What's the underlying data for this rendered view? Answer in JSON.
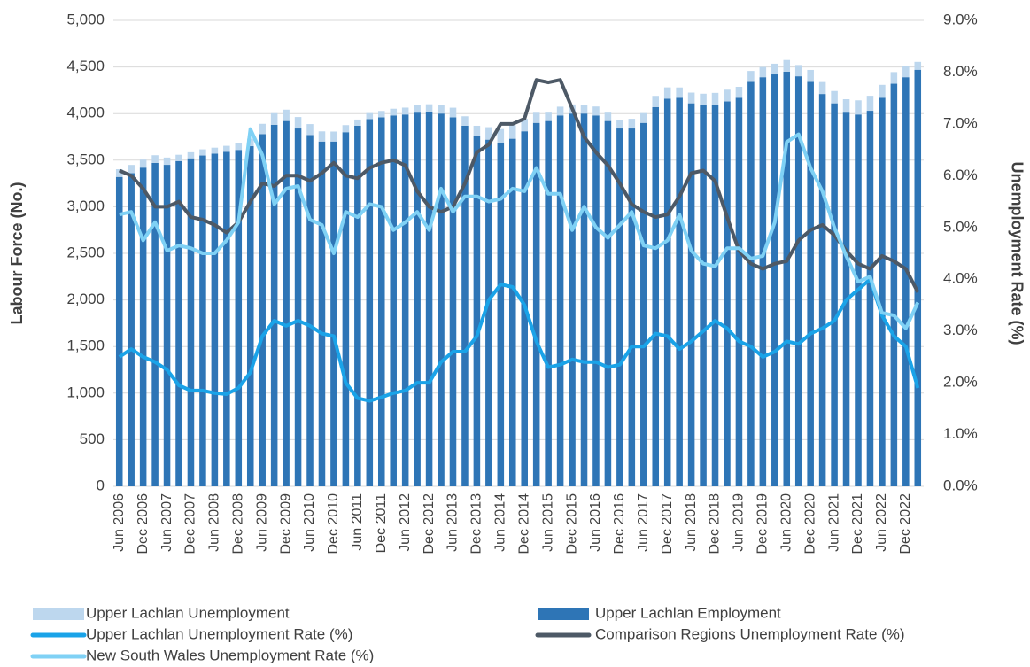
{
  "chart_data": {
    "type": "bar",
    "stacked": true,
    "y_label": "Labour Force (No.)",
    "y2_label": "Unemployment Rate (%)",
    "categories": [
      "Jun 2006",
      null,
      "Dec 2006",
      null,
      "Jun 2007",
      null,
      "Dec 2007",
      null,
      "Jun 2008",
      null,
      "Dec 2008",
      null,
      "Jun 2009",
      null,
      "Dec 2009",
      null,
      "Jun 2010",
      null,
      "Dec 2010",
      null,
      "Jun 2011",
      null,
      "Dec 2011",
      null,
      "Jun 2012",
      null,
      "Dec 2012",
      null,
      "Jun 2013",
      null,
      "Dec 2013",
      null,
      "Jun 2014",
      null,
      "Dec 2014",
      null,
      "Jun 2015",
      null,
      "Dec 2015",
      null,
      "Jun 2016",
      null,
      "Dec 2016",
      null,
      "Jun 2017",
      null,
      "Dec 2017",
      null,
      "Jun 2018",
      null,
      "Dec 2018",
      null,
      "Jun 2019",
      null,
      "Dec 2019",
      null,
      "Jun 2020",
      null,
      "Dec 2020",
      null,
      "Jun 2021",
      null,
      "Dec 2021",
      null,
      "Jun 2022",
      null,
      "Dec 2022",
      null
    ],
    "series": [
      {
        "name": "Upper Lachlan Unemployment",
        "type": "bar",
        "color": "#bdd7ee",
        "values": [
          83,
          89,
          86,
          83,
          78,
          68,
          65,
          66,
          64,
          64,
          69,
          80,
          110,
          124,
          122,
          123,
          117,
          109,
          107,
          76,
          66,
          65,
          68,
          72,
          74,
          80,
          80,
          96,
          103,
          101,
          109,
          134,
          144,
          144,
          133,
          109,
          90,
          94,
          98,
          96,
          96,
          90,
          90,
          104,
          105,
          120,
          121,
          110,
          115,
          123,
          132,
          126,
          117,
          117,
          110,
          115,
          125,
          121,
          128,
          128,
          132,
          144,
          152,
          161,
          138,
          125,
          119,
          85
        ]
      },
      {
        "name": "Upper Lachlan Employment",
        "type": "bar",
        "color": "#2e75b6",
        "values": [
          3320,
          3360,
          3420,
          3470,
          3450,
          3490,
          3520,
          3550,
          3570,
          3590,
          3610,
          3650,
          3780,
          3880,
          3920,
          3840,
          3770,
          3700,
          3700,
          3800,
          3870,
          3940,
          3960,
          3980,
          3990,
          4010,
          4020,
          4000,
          3960,
          3870,
          3760,
          3720,
          3690,
          3730,
          3810,
          3900,
          3920,
          3980,
          4000,
          4000,
          3980,
          3920,
          3840,
          3840,
          3900,
          4070,
          4160,
          4170,
          4110,
          4090,
          4090,
          4130,
          4170,
          4340,
          4390,
          4420,
          4450,
          4400,
          4340,
          4210,
          4110,
          4010,
          3990,
          4030,
          4170,
          4320,
          4390,
          4470
        ]
      },
      {
        "name": "Upper Lachlan Unemployment Rate (%)",
        "type": "line",
        "axis": "y2",
        "color": "#1aa3e8",
        "values": [
          2.5,
          2.65,
          2.5,
          2.4,
          2.25,
          1.95,
          1.85,
          1.85,
          1.8,
          1.78,
          1.9,
          2.2,
          2.9,
          3.2,
          3.1,
          3.2,
          3.1,
          2.95,
          2.9,
          2.0,
          1.7,
          1.65,
          1.72,
          1.8,
          1.85,
          2.0,
          2.0,
          2.4,
          2.6,
          2.6,
          2.9,
          3.6,
          3.9,
          3.85,
          3.5,
          2.8,
          2.3,
          2.35,
          2.45,
          2.4,
          2.4,
          2.3,
          2.35,
          2.7,
          2.7,
          2.95,
          2.9,
          2.65,
          2.8,
          3.0,
          3.2,
          3.05,
          2.8,
          2.7,
          2.5,
          2.6,
          2.8,
          2.75,
          2.95,
          3.05,
          3.2,
          3.6,
          3.8,
          4.0,
          3.3,
          2.9,
          2.7,
          1.9
        ]
      },
      {
        "name": "Comparison Regions Unemployment Rate (%)",
        "type": "line",
        "axis": "y2",
        "color": "#4d5966",
        "values": [
          6.1,
          6.0,
          5.75,
          5.4,
          5.4,
          5.5,
          5.2,
          5.15,
          5.05,
          4.9,
          5.1,
          5.5,
          5.85,
          5.8,
          6.0,
          6.0,
          5.9,
          6.05,
          6.25,
          6.0,
          5.95,
          6.15,
          6.25,
          6.3,
          6.2,
          5.7,
          5.4,
          5.3,
          5.4,
          5.85,
          6.45,
          6.6,
          7.0,
          7.0,
          7.1,
          7.85,
          7.8,
          7.85,
          7.3,
          6.75,
          6.45,
          6.2,
          5.85,
          5.45,
          5.3,
          5.2,
          5.25,
          5.6,
          6.05,
          6.1,
          5.9,
          5.2,
          4.55,
          4.3,
          4.2,
          4.3,
          4.35,
          4.75,
          4.95,
          5.05,
          4.85,
          4.55,
          4.3,
          4.2,
          4.45,
          4.35,
          4.2,
          3.75
        ]
      },
      {
        "name": "New South Wales Unemployment Rate (%)",
        "type": "line",
        "axis": "y2",
        "color": "#7fd1f5",
        "values": [
          5.25,
          5.3,
          4.75,
          5.1,
          4.55,
          4.65,
          4.6,
          4.5,
          4.5,
          4.75,
          5.1,
          6.9,
          6.4,
          5.45,
          5.75,
          5.8,
          5.15,
          5.05,
          4.5,
          5.3,
          5.2,
          5.45,
          5.4,
          4.95,
          5.1,
          5.3,
          4.95,
          5.75,
          5.3,
          5.6,
          5.6,
          5.5,
          5.55,
          5.75,
          5.7,
          6.15,
          5.65,
          5.65,
          4.95,
          5.4,
          5.0,
          4.8,
          5.05,
          5.3,
          4.65,
          4.6,
          4.75,
          5.25,
          4.55,
          4.3,
          4.25,
          4.6,
          4.6,
          4.4,
          4.45,
          5.1,
          6.65,
          6.8,
          6.15,
          5.7,
          5.0,
          4.45,
          3.95,
          4.05,
          3.35,
          3.3,
          3.05,
          3.55
        ]
      }
    ],
    "ylim": [
      0,
      5000
    ],
    "yticks": [
      0,
      500,
      {
        "value": 1000,
        "label": "1,000"
      },
      {
        "value": 1500,
        "label": "1,500"
      },
      {
        "value": 2000,
        "label": "2,000"
      },
      {
        "value": 2500,
        "label": "2,500"
      },
      {
        "value": 3000,
        "label": "3,000"
      },
      {
        "value": 3500,
        "label": "3,500"
      },
      {
        "value": 4000,
        "label": "4,000"
      },
      {
        "value": 4500,
        "label": "4,500"
      },
      {
        "value": 5000,
        "label": "5,000"
      }
    ],
    "y2lim": [
      0,
      9
    ],
    "y2ticks": [
      {
        "value": 0,
        "label": "0.0%"
      },
      {
        "value": 1,
        "label": "1.0%"
      },
      {
        "value": 2,
        "label": "2.0%"
      },
      {
        "value": 3,
        "label": "3.0%"
      },
      {
        "value": 4,
        "label": "4.0%"
      },
      {
        "value": 5,
        "label": "5.0%"
      },
      {
        "value": 6,
        "label": "6.0%"
      },
      {
        "value": 7,
        "label": "7.0%"
      },
      {
        "value": 8,
        "label": "8.0%"
      },
      {
        "value": 9,
        "label": "9.0%"
      }
    ],
    "grid": true,
    "legend": "bottom"
  }
}
